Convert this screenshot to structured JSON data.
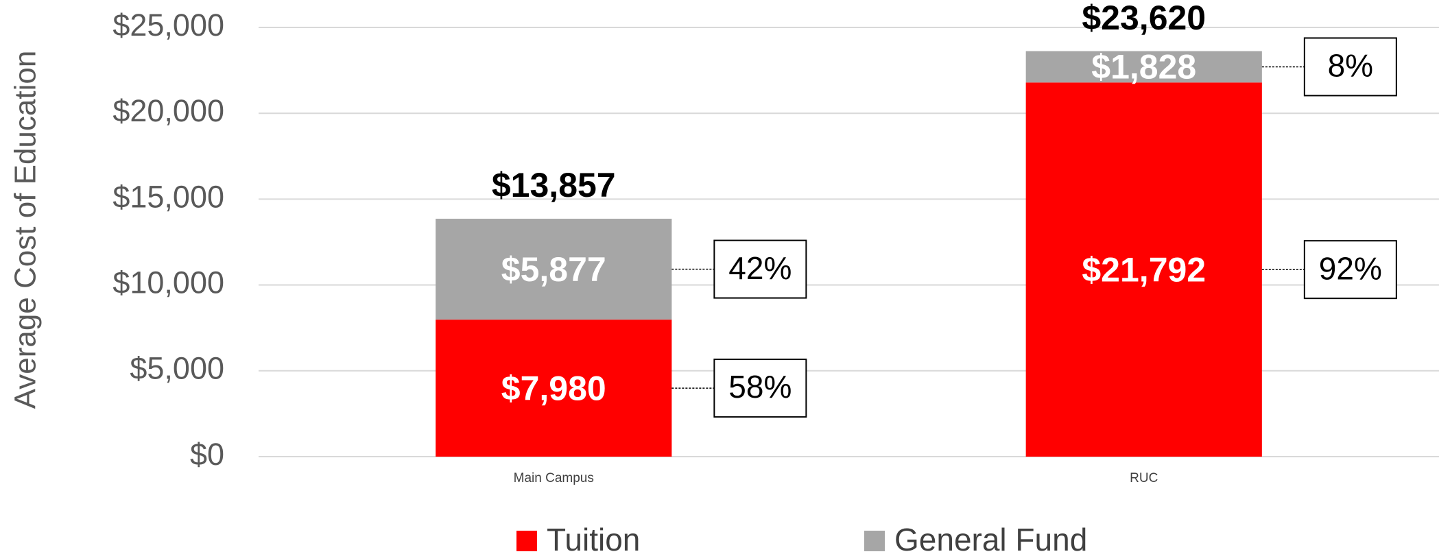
{
  "chart_data": {
    "type": "stacked_bar",
    "y_label": "Average Cost of Education",
    "categories": [
      "Main Campus",
      "RUC"
    ],
    "series": [
      {
        "name": "Tuition",
        "color": "#ff0000",
        "values": [
          7980,
          21792
        ],
        "value_labels": [
          "$7,980",
          "$21,792"
        ],
        "shares": [
          58,
          92
        ],
        "share_labels": [
          "58%",
          "92%"
        ]
      },
      {
        "name": "General Fund",
        "color": "#a6a6a6",
        "values": [
          5877,
          1828
        ],
        "value_labels": [
          "$5,877",
          "$1,828"
        ],
        "shares": [
          42,
          8
        ],
        "share_labels": [
          "42%",
          "8%"
        ]
      }
    ],
    "totals": [
      13857,
      23620
    ],
    "total_labels": [
      "$13,857",
      "$23,620"
    ],
    "ylim": [
      0,
      25000
    ],
    "yticks": [
      {
        "value": 0,
        "label": "$0"
      },
      {
        "value": 5000,
        "label": "$5,000"
      },
      {
        "value": 10000,
        "label": "$10,000"
      },
      {
        "value": 15000,
        "label": "$15,000"
      },
      {
        "value": 20000,
        "label": "$20,000"
      },
      {
        "value": 25000,
        "label": "$25,000"
      }
    ],
    "grid": true,
    "legend": "bottom"
  }
}
